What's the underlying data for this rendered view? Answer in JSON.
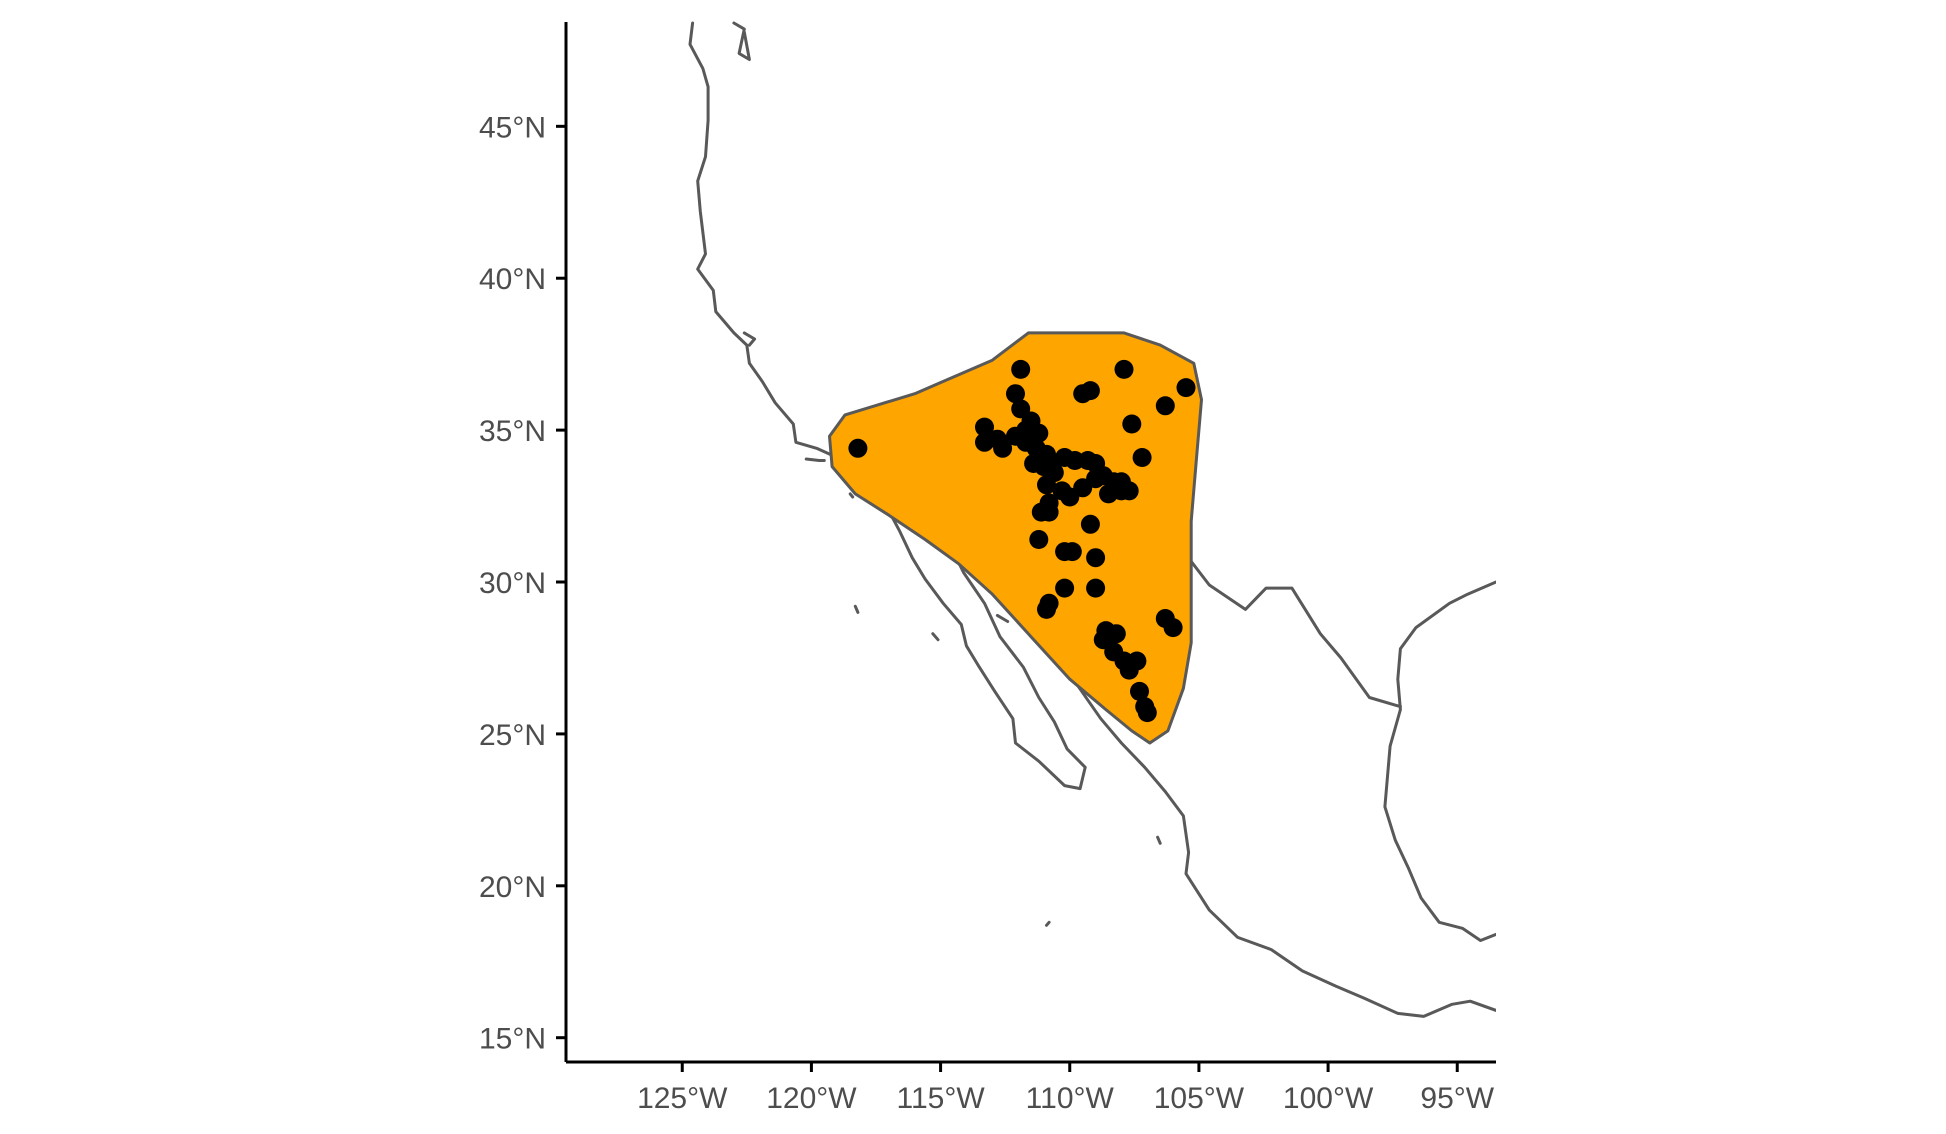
{
  "chart_data": {
    "type": "scatter",
    "projection": "equirectangular",
    "x_range": [
      -129.5,
      -93.5
    ],
    "y_range": [
      14.2,
      48.5
    ],
    "grid": false,
    "axes": {
      "x": {
        "ticks": [
          {
            "value": -125,
            "label": "125°W"
          },
          {
            "value": -120,
            "label": "120°W"
          },
          {
            "value": -115,
            "label": "115°W"
          },
          {
            "value": -110,
            "label": "110°W"
          },
          {
            "value": -105,
            "label": "105°W"
          },
          {
            "value": -100,
            "label": "100°W"
          },
          {
            "value": -95,
            "label": "95°W"
          }
        ]
      },
      "y": {
        "ticks": [
          {
            "value": 15,
            "label": "15°N"
          },
          {
            "value": 20,
            "label": "20°N"
          },
          {
            "value": 25,
            "label": "25°N"
          },
          {
            "value": 30,
            "label": "30°N"
          },
          {
            "value": 35,
            "label": "35°N"
          },
          {
            "value": 40,
            "label": "40°N"
          },
          {
            "value": 45,
            "label": "45°N"
          }
        ]
      }
    },
    "colors": {
      "range_fill": "#ffa500",
      "range_stroke": "#595959",
      "coastline": "#595959",
      "points": "#000000",
      "axis": "#000000",
      "tick_text": "#4d4d4d"
    },
    "range_polygon": [
      [
        -118.7,
        35.5
      ],
      [
        -116,
        36.2
      ],
      [
        -113,
        37.3
      ],
      [
        -111.6,
        38.2
      ],
      [
        -110,
        38.2
      ],
      [
        -107.9,
        38.2
      ],
      [
        -106.5,
        37.8
      ],
      [
        -105.2,
        37.2
      ],
      [
        -104.9,
        36
      ],
      [
        -105.1,
        34
      ],
      [
        -105.3,
        32
      ],
      [
        -105.3,
        29.5
      ],
      [
        -105.3,
        28
      ],
      [
        -105.6,
        26.5
      ],
      [
        -106.2,
        25.1
      ],
      [
        -106.9,
        24.7
      ],
      [
        -107.6,
        25.1
      ],
      [
        -108.6,
        25.8
      ],
      [
        -110,
        26.8
      ],
      [
        -111.5,
        28.2
      ],
      [
        -113,
        29.6
      ],
      [
        -114.3,
        30.6
      ],
      [
        -115.6,
        31.4
      ],
      [
        -117,
        32.2
      ],
      [
        -118.3,
        32.9
      ],
      [
        -119.2,
        33.8
      ],
      [
        -119.3,
        34.8
      ]
    ],
    "points": [
      [
        -118.2,
        34.4
      ],
      [
        -111.9,
        37
      ],
      [
        -107.9,
        37
      ],
      [
        -105.5,
        36.4
      ],
      [
        -106.3,
        35.8
      ],
      [
        -109.5,
        36.2
      ],
      [
        -109.2,
        36.3
      ],
      [
        -112.1,
        36.2
      ],
      [
        -111.9,
        35.7
      ],
      [
        -113.3,
        35.1
      ],
      [
        -112.8,
        34.7
      ],
      [
        -112.6,
        34.4
      ],
      [
        -112.1,
        34.8
      ],
      [
        -111.5,
        35.3
      ],
      [
        -111.7,
        35
      ],
      [
        -111.2,
        34.9
      ],
      [
        -110.9,
        34.2
      ],
      [
        -111.3,
        34.4
      ],
      [
        -111,
        33.8
      ],
      [
        -110.6,
        33.6
      ],
      [
        -110.8,
        34
      ],
      [
        -110.2,
        34.1
      ],
      [
        -109.8,
        34
      ],
      [
        -109.3,
        34
      ],
      [
        -109,
        33.9
      ],
      [
        -108.7,
        33.5
      ],
      [
        -108.3,
        33.3
      ],
      [
        -108.5,
        32.9
      ],
      [
        -108,
        33.3
      ],
      [
        -107.7,
        33
      ],
      [
        -109,
        33.4
      ],
      [
        -109.5,
        33.1
      ],
      [
        -110,
        32.8
      ],
      [
        -110.3,
        33
      ],
      [
        -110.9,
        33.2
      ],
      [
        -110.8,
        32.6
      ],
      [
        -111.1,
        32.3
      ],
      [
        -110.8,
        32.3
      ],
      [
        -107.6,
        35.2
      ],
      [
        -107.2,
        34.1
      ],
      [
        -109.2,
        31.9
      ],
      [
        -111.2,
        31.4
      ],
      [
        -110.2,
        31
      ],
      [
        -109.9,
        31
      ],
      [
        -109,
        30.8
      ],
      [
        -110.2,
        29.8
      ],
      [
        -109,
        29.8
      ],
      [
        -110.9,
        29.1
      ],
      [
        -110.8,
        29.3
      ],
      [
        -108.6,
        28.4
      ],
      [
        -108.2,
        28.3
      ],
      [
        -108.7,
        28.1
      ],
      [
        -108.3,
        27.7
      ],
      [
        -107.9,
        27.4
      ],
      [
        -107.4,
        27.4
      ],
      [
        -107.7,
        27.1
      ],
      [
        -107.3,
        26.4
      ],
      [
        -107.1,
        25.9
      ],
      [
        -107,
        25.7
      ],
      [
        -106.3,
        28.8
      ],
      [
        -106,
        28.5
      ],
      [
        -113.3,
        34.6
      ],
      [
        -111.7,
        34.6
      ],
      [
        -111.4,
        33.9
      ],
      [
        -108,
        33
      ]
    ],
    "coastlines": [
      [
        [
          -124.6,
          48.4
        ],
        [
          -124.7,
          47.7
        ],
        [
          -124.2,
          46.9
        ],
        [
          -124,
          46.3
        ],
        [
          -124,
          45.2
        ],
        [
          -124.1,
          44
        ],
        [
          -124.4,
          43.2
        ],
        [
          -124.3,
          42.2
        ],
        [
          -124.2,
          41.5
        ],
        [
          -124.1,
          40.8
        ],
        [
          -124.4,
          40.3
        ],
        [
          -123.8,
          39.6
        ],
        [
          -123.7,
          38.9
        ],
        [
          -123,
          38.2
        ],
        [
          -122.5,
          37.8
        ],
        [
          -122.4,
          37.2
        ],
        [
          -121.9,
          36.6
        ],
        [
          -121.4,
          35.9
        ],
        [
          -120.7,
          35.2
        ],
        [
          -120.6,
          34.6
        ],
        [
          -119.8,
          34.4
        ],
        [
          -118.8,
          34.02
        ],
        [
          -118.3,
          33.7
        ],
        [
          -117.5,
          33.2
        ],
        [
          -117.1,
          32.5
        ],
        [
          -116.6,
          31.7
        ],
        [
          -116.1,
          30.8
        ],
        [
          -115.6,
          30.1
        ],
        [
          -114.9,
          29.3
        ],
        [
          -114.2,
          28.6
        ],
        [
          -114,
          27.9
        ],
        [
          -113.5,
          27.2
        ],
        [
          -112.9,
          26.4
        ],
        [
          -112.2,
          25.5
        ],
        [
          -112.1,
          24.7
        ],
        [
          -111.2,
          24.1
        ],
        [
          -110.2,
          23.3
        ],
        [
          -109.6,
          23.2
        ],
        [
          -109.4,
          23.9
        ],
        [
          -110.1,
          24.5
        ],
        [
          -110.6,
          25.4
        ],
        [
          -111.2,
          26.2
        ],
        [
          -111.8,
          27.2
        ],
        [
          -112.7,
          28.2
        ],
        [
          -113.3,
          29.3
        ],
        [
          -114.1,
          30.3
        ],
        [
          -114.8,
          31.5
        ],
        [
          -114.5,
          31.8
        ],
        [
          -113.6,
          31.4
        ],
        [
          -112.9,
          30.6
        ],
        [
          -112.2,
          29.6
        ],
        [
          -111.3,
          28.3
        ],
        [
          -110.4,
          27.6
        ],
        [
          -109.7,
          26.6
        ],
        [
          -108.8,
          25.5
        ],
        [
          -108,
          24.7
        ],
        [
          -107.1,
          23.9
        ],
        [
          -106.3,
          23.1
        ],
        [
          -105.6,
          22.3
        ],
        [
          -105.4,
          21.1
        ],
        [
          -105.5,
          20.4
        ],
        [
          -104.6,
          19.2
        ],
        [
          -103.5,
          18.3
        ],
        [
          -102.2,
          17.9
        ],
        [
          -101,
          17.2
        ],
        [
          -99.7,
          16.7
        ],
        [
          -98.6,
          16.3
        ],
        [
          -97.3,
          15.8
        ],
        [
          -96.3,
          15.7
        ],
        [
          -95.2,
          16.1
        ],
        [
          -94.5,
          16.2
        ],
        [
          -93.5,
          15.9
        ]
      ],
      [
        [
          -93.5,
          18.4
        ],
        [
          -94.1,
          18.2
        ],
        [
          -94.8,
          18.6
        ],
        [
          -95.7,
          18.8
        ],
        [
          -96.4,
          19.6
        ],
        [
          -96.9,
          20.6
        ],
        [
          -97.4,
          21.5
        ],
        [
          -97.8,
          22.6
        ],
        [
          -97.7,
          23.6
        ],
        [
          -97.6,
          24.6
        ],
        [
          -97.2,
          25.8
        ],
        [
          -97.3,
          26.8
        ],
        [
          -97.2,
          27.8
        ],
        [
          -96.6,
          28.5
        ],
        [
          -95.3,
          29.3
        ],
        [
          -94.6,
          29.6
        ],
        [
          -93.5,
          30.0
        ]
      ],
      [
        [
          -117.1,
          32.5
        ],
        [
          -116,
          32.6
        ],
        [
          -114.8,
          32.7
        ],
        [
          -113,
          31.9
        ],
        [
          -111.1,
          31.3
        ],
        [
          -108.2,
          31.3
        ],
        [
          -106.5,
          31.75
        ],
        [
          -105.5,
          30.9
        ],
        [
          -104.6,
          29.9
        ],
        [
          -103.2,
          29.1
        ],
        [
          -102.4,
          29.8
        ],
        [
          -101.4,
          29.8
        ],
        [
          -100.3,
          28.3
        ],
        [
          -99.5,
          27.5
        ],
        [
          -98.4,
          26.2
        ],
        [
          -97.2,
          25.9
        ]
      ]
    ],
    "islands": [
      [
        [
          -120.2,
          34.05
        ],
        [
          -119.7,
          34.0
        ],
        [
          -119.5,
          34.0
        ]
      ],
      [
        [
          -118.6,
          33.4
        ],
        [
          -118.3,
          33.3
        ]
      ],
      [
        [
          -118.5,
          32.9
        ],
        [
          -118.4,
          32.8
        ]
      ],
      [
        [
          -118.3,
          29.2
        ],
        [
          -118.2,
          29.0
        ]
      ],
      [
        [
          -115.3,
          28.3
        ],
        [
          -115.1,
          28.1
        ]
      ],
      [
        [
          -110.8,
          18.8
        ],
        [
          -110.9,
          18.7
        ]
      ],
      [
        [
          -106.6,
          21.6
        ],
        [
          -106.5,
          21.4
        ]
      ],
      [
        [
          -112.8,
          28.9
        ],
        [
          -112.4,
          28.7
        ]
      ],
      [
        [
          -122.6,
          38.2
        ],
        [
          -122.2,
          38.0
        ],
        [
          -122.4,
          37.8
        ]
      ],
      [
        [
          -123,
          48.4
        ],
        [
          -122.6,
          48.2
        ],
        [
          -122.8,
          47.4
        ],
        [
          -122.4,
          47.2
        ],
        [
          -122.6,
          48.1
        ]
      ]
    ]
  }
}
